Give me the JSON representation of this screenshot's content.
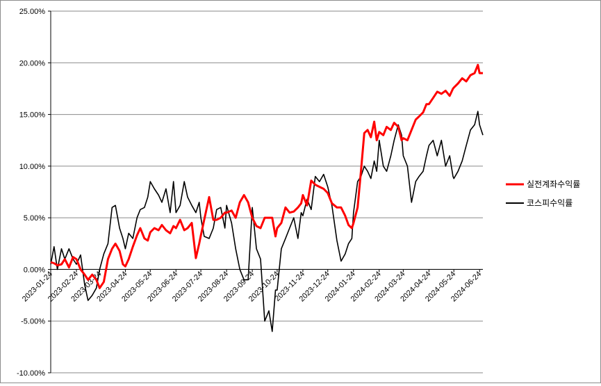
{
  "chart_data": {
    "type": "line",
    "title": "",
    "xlabel": "",
    "ylabel": "",
    "ylim": [
      -0.1,
      0.25
    ],
    "y_ticks": [
      -0.1,
      -0.05,
      0.0,
      0.05,
      0.1,
      0.15,
      0.2,
      0.25
    ],
    "y_tick_labels": [
      "-10.00%",
      "-5.00%",
      "0.00%",
      "5.00%",
      "10.00%",
      "15.00%",
      "20.00%",
      "25.00%"
    ],
    "y_format": "percent_2dp",
    "grid": "horizontal",
    "legend": "right",
    "x_tick_labels": [
      "2023-01-24",
      "2023-02-24",
      "2023-03-24",
      "2023-04-24",
      "2023-05-24",
      "2023-06-24",
      "2023-07-24",
      "2023-08-24",
      "2023-09-24",
      "2023-10-24",
      "2023-11-24",
      "2023-12-24",
      "2024-01-24",
      "2024-02-24",
      "2024-03-24",
      "2024-04-24",
      "2024-05-24",
      "2024-06-24"
    ],
    "x_range": [
      "2023-01-24",
      "2024-06-28"
    ],
    "series": [
      {
        "name": "실전계좌수익률",
        "color": "#ff0000",
        "x": [
          "2023-01-24",
          "2023-01-28",
          "2023-02-01",
          "2023-02-06",
          "2023-02-10",
          "2023-02-15",
          "2023-02-20",
          "2023-02-24",
          "2023-03-01",
          "2023-03-06",
          "2023-03-10",
          "2023-03-15",
          "2023-03-20",
          "2023-03-24",
          "2023-03-29",
          "2023-04-03",
          "2023-04-08",
          "2023-04-12",
          "2023-04-17",
          "2023-04-21",
          "2023-04-24",
          "2023-04-28",
          "2023-05-03",
          "2023-05-08",
          "2023-05-12",
          "2023-05-17",
          "2023-05-21",
          "2023-05-24",
          "2023-05-29",
          "2023-06-03",
          "2023-06-07",
          "2023-06-12",
          "2023-06-17",
          "2023-06-21",
          "2023-06-24",
          "2023-06-29",
          "2023-07-04",
          "2023-07-08",
          "2023-07-13",
          "2023-07-18",
          "2023-07-22",
          "2023-07-24",
          "2023-07-28",
          "2023-08-03",
          "2023-08-08",
          "2023-08-12",
          "2023-08-17",
          "2023-08-22",
          "2023-08-24",
          "2023-08-30",
          "2023-09-04",
          "2023-09-09",
          "2023-09-14",
          "2023-09-19",
          "2023-09-24",
          "2023-09-29",
          "2023-10-04",
          "2023-10-09",
          "2023-10-14",
          "2023-10-18",
          "2023-10-22",
          "2023-10-24",
          "2023-10-29",
          "2023-11-03",
          "2023-11-08",
          "2023-11-13",
          "2023-11-18",
          "2023-11-22",
          "2023-11-24",
          "2023-11-29",
          "2023-12-04",
          "2023-12-09",
          "2023-12-14",
          "2023-12-19",
          "2023-12-24",
          "2023-12-29",
          "2024-01-04",
          "2024-01-09",
          "2024-01-14",
          "2024-01-18",
          "2024-01-22",
          "2024-01-24",
          "2024-01-29",
          "2024-02-02",
          "2024-02-06",
          "2024-02-10",
          "2024-02-14",
          "2024-02-18",
          "2024-02-21",
          "2024-02-24",
          "2024-02-29",
          "2024-03-04",
          "2024-03-09",
          "2024-03-13",
          "2024-03-18",
          "2024-03-22",
          "2024-03-24",
          "2024-03-29",
          "2024-04-03",
          "2024-04-08",
          "2024-04-12",
          "2024-04-17",
          "2024-04-21",
          "2024-04-24",
          "2024-04-29",
          "2024-05-04",
          "2024-05-09",
          "2024-05-14",
          "2024-05-19",
          "2024-05-23",
          "2024-05-24",
          "2024-05-29",
          "2024-06-03",
          "2024-06-08",
          "2024-06-13",
          "2024-06-18",
          "2024-06-22",
          "2024-06-24",
          "2024-06-28"
        ],
        "values": [
          0.007,
          0.006,
          0.004,
          0.005,
          0.01,
          0.002,
          0.012,
          0.01,
          0.0,
          -0.005,
          -0.01,
          -0.005,
          -0.01,
          -0.018,
          -0.012,
          0.01,
          0.02,
          0.025,
          0.018,
          0.005,
          0.003,
          0.01,
          0.022,
          0.033,
          0.04,
          0.03,
          0.028,
          0.036,
          0.04,
          0.038,
          0.043,
          0.038,
          0.035,
          0.042,
          0.04,
          0.048,
          0.038,
          0.04,
          0.045,
          0.011,
          0.025,
          0.033,
          0.048,
          0.07,
          0.048,
          0.048,
          0.05,
          0.055,
          0.055,
          0.057,
          0.05,
          0.065,
          0.072,
          0.065,
          0.05,
          0.042,
          0.04,
          0.05,
          0.05,
          0.05,
          0.032,
          0.04,
          0.045,
          0.06,
          0.055,
          0.056,
          0.06,
          0.064,
          0.072,
          0.062,
          0.086,
          0.082,
          0.08,
          0.078,
          0.074,
          0.064,
          0.06,
          0.06,
          0.052,
          0.043,
          0.04,
          0.045,
          0.06,
          0.095,
          0.132,
          0.135,
          0.128,
          0.143,
          0.125,
          0.133,
          0.13,
          0.138,
          0.135,
          0.142,
          0.138,
          0.125,
          0.127,
          0.125,
          0.135,
          0.145,
          0.148,
          0.152,
          0.16,
          0.16,
          0.166,
          0.172,
          0.17,
          0.173,
          0.168,
          0.175,
          0.176,
          0.18,
          0.185,
          0.182,
          0.188,
          0.19,
          0.198,
          0.19,
          0.19
        ]
      },
      {
        "name": "코스피수익률",
        "color": "#000000",
        "x": [
          "2023-01-24",
          "2023-01-28",
          "2023-02-01",
          "2023-02-06",
          "2023-02-10",
          "2023-02-15",
          "2023-02-20",
          "2023-02-24",
          "2023-03-01",
          "2023-03-06",
          "2023-03-10",
          "2023-03-15",
          "2023-03-20",
          "2023-03-24",
          "2023-03-29",
          "2023-04-03",
          "2023-04-08",
          "2023-04-12",
          "2023-04-17",
          "2023-04-21",
          "2023-04-24",
          "2023-04-28",
          "2023-05-03",
          "2023-05-08",
          "2023-05-12",
          "2023-05-17",
          "2023-05-21",
          "2023-05-24",
          "2023-05-29",
          "2023-06-03",
          "2023-06-07",
          "2023-06-12",
          "2023-06-17",
          "2023-06-21",
          "2023-06-24",
          "2023-06-29",
          "2023-07-04",
          "2023-07-08",
          "2023-07-13",
          "2023-07-18",
          "2023-07-22",
          "2023-07-24",
          "2023-07-28",
          "2023-08-03",
          "2023-08-08",
          "2023-08-12",
          "2023-08-17",
          "2023-08-22",
          "2023-08-24",
          "2023-08-30",
          "2023-09-04",
          "2023-09-09",
          "2023-09-14",
          "2023-09-19",
          "2023-09-24",
          "2023-09-29",
          "2023-10-04",
          "2023-10-09",
          "2023-10-14",
          "2023-10-18",
          "2023-10-22",
          "2023-10-24",
          "2023-10-29",
          "2023-11-03",
          "2023-11-08",
          "2023-11-13",
          "2023-11-18",
          "2023-11-22",
          "2023-11-24",
          "2023-11-29",
          "2023-12-04",
          "2023-12-09",
          "2023-12-14",
          "2023-12-19",
          "2023-12-24",
          "2023-12-29",
          "2024-01-04",
          "2024-01-09",
          "2024-01-14",
          "2024-01-18",
          "2024-01-22",
          "2024-01-24",
          "2024-01-29",
          "2024-02-02",
          "2024-02-06",
          "2024-02-10",
          "2024-02-14",
          "2024-02-18",
          "2024-02-21",
          "2024-02-24",
          "2024-02-29",
          "2024-03-04",
          "2024-03-09",
          "2024-03-13",
          "2024-03-18",
          "2024-03-22",
          "2024-03-24",
          "2024-03-29",
          "2024-04-03",
          "2024-04-08",
          "2024-04-12",
          "2024-04-17",
          "2024-04-21",
          "2024-04-24",
          "2024-04-29",
          "2024-05-04",
          "2024-05-09",
          "2024-05-14",
          "2024-05-19",
          "2024-05-23",
          "2024-05-24",
          "2024-05-29",
          "2024-06-03",
          "2024-06-08",
          "2024-06-13",
          "2024-06-18",
          "2024-06-22",
          "2024-06-24",
          "2024-06-28"
        ],
        "values": [
          0.005,
          0.022,
          0.0,
          0.02,
          0.01,
          0.02,
          0.01,
          0.005,
          0.014,
          -0.015,
          -0.03,
          -0.025,
          -0.018,
          0.0,
          0.015,
          0.025,
          0.06,
          0.062,
          0.04,
          0.03,
          0.02,
          0.035,
          0.03,
          0.05,
          0.058,
          0.06,
          0.07,
          0.085,
          0.078,
          0.072,
          0.065,
          0.078,
          0.055,
          0.085,
          0.055,
          0.062,
          0.085,
          0.07,
          0.062,
          0.055,
          0.065,
          0.05,
          0.032,
          0.03,
          0.04,
          0.058,
          0.06,
          0.04,
          0.062,
          0.045,
          0.02,
          0.0,
          -0.01,
          -0.01,
          0.06,
          0.02,
          0.01,
          -0.05,
          -0.04,
          -0.06,
          -0.02,
          -0.02,
          0.02,
          0.03,
          0.04,
          0.05,
          0.03,
          0.055,
          0.052,
          0.068,
          0.058,
          0.09,
          0.085,
          0.092,
          0.08,
          0.062,
          0.028,
          0.008,
          0.015,
          0.025,
          0.03,
          0.055,
          0.085,
          0.09,
          0.1,
          0.095,
          0.088,
          0.105,
          0.095,
          0.125,
          0.1,
          0.095,
          0.11,
          0.125,
          0.14,
          0.13,
          0.11,
          0.1,
          0.065,
          0.085,
          0.09,
          0.095,
          0.11,
          0.12,
          0.125,
          0.11,
          0.125,
          0.1,
          0.11,
          0.09,
          0.088,
          0.095,
          0.105,
          0.12,
          0.135,
          0.14,
          0.153,
          0.14,
          0.13
        ]
      }
    ]
  }
}
